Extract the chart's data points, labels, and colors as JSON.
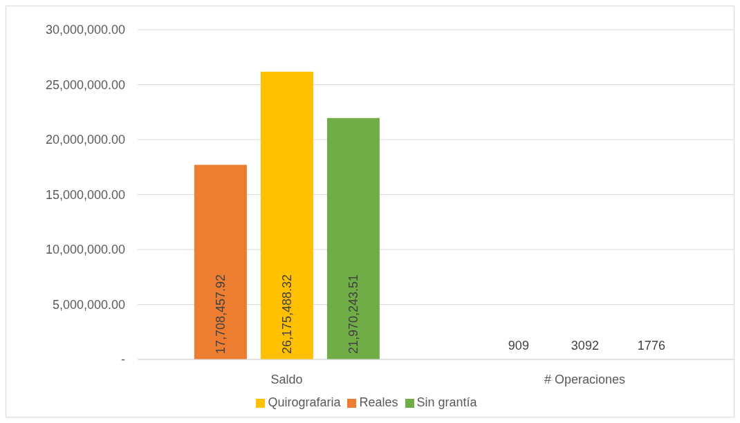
{
  "chart_data": {
    "type": "bar",
    "categories": [
      "Saldo",
      "# Operaciones"
    ],
    "series": [
      {
        "name": "Reales",
        "color": "#ed7d31",
        "values": [
          17708457.92,
          909
        ],
        "value_labels": [
          "17,708,457.92",
          "909"
        ]
      },
      {
        "name": "Quirografaria",
        "color": "#ffc000",
        "values": [
          26175488.32,
          3092
        ],
        "value_labels": [
          "26,175,488.32",
          "3092"
        ]
      },
      {
        "name": "Sin grantía",
        "color": "#70ad47",
        "values": [
          21970243.51,
          1776
        ],
        "value_labels": [
          "21,970,243.51",
          "1776"
        ]
      }
    ],
    "ylim": [
      0,
      30000000
    ],
    "yticks": [
      {
        "value": 0,
        "label": "-"
      },
      {
        "value": 5000000,
        "label": "5,000,000.00"
      },
      {
        "value": 10000000,
        "label": "10,000,000.00"
      },
      {
        "value": 15000000,
        "label": "15,000,000.00"
      },
      {
        "value": 20000000,
        "label": "20,000,000.00"
      },
      {
        "value": 25000000,
        "label": "25,000,000.00"
      },
      {
        "value": 30000000,
        "label": "30,000,000.00"
      }
    ],
    "grid": "y",
    "legend": "bottom"
  }
}
